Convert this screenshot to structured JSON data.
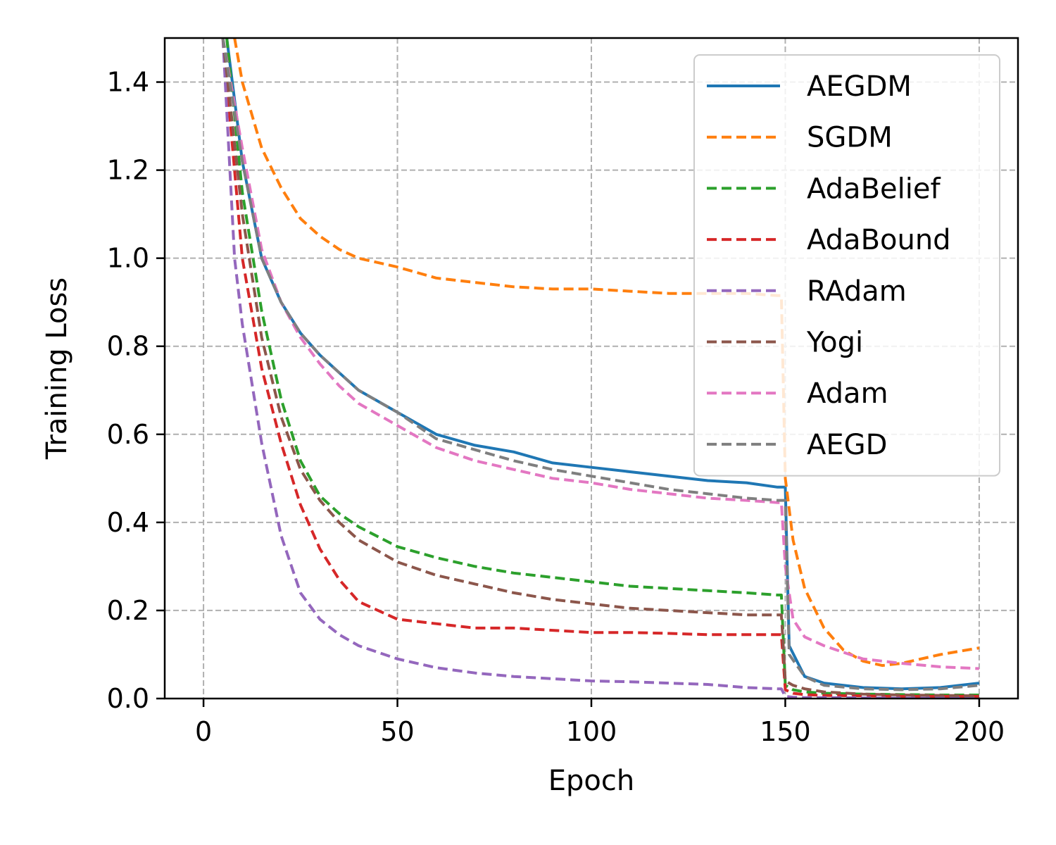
{
  "chart_data": {
    "type": "line",
    "title": "",
    "xlabel": "Epoch",
    "ylabel": "Training Loss",
    "xlim": [
      -10,
      210
    ],
    "ylim": [
      0,
      1.5
    ],
    "xticks": [
      0,
      50,
      100,
      150,
      200
    ],
    "yticks": [
      0.0,
      0.2,
      0.4,
      0.6,
      0.8,
      1.0,
      1.2,
      1.4
    ],
    "xtick_labels": [
      "0",
      "50",
      "100",
      "150",
      "200"
    ],
    "ytick_labels": [
      "0.0",
      "0.2",
      "0.4",
      "0.6",
      "0.8",
      "1.0",
      "1.2",
      "1.4"
    ],
    "grid": true,
    "legend_position": "top-right",
    "series": [
      {
        "name": "AEGDM",
        "color": "#1f77b4",
        "dash": "solid",
        "x": [
          6,
          10,
          15,
          20,
          25,
          30,
          35,
          40,
          50,
          60,
          70,
          80,
          90,
          100,
          110,
          120,
          130,
          140,
          148,
          149,
          150,
          151,
          155,
          160,
          170,
          180,
          190,
          200
        ],
        "y": [
          1.5,
          1.22,
          1.0,
          0.9,
          0.83,
          0.78,
          0.74,
          0.7,
          0.65,
          0.6,
          0.575,
          0.56,
          0.535,
          0.525,
          0.515,
          0.505,
          0.495,
          0.49,
          0.48,
          0.48,
          0.48,
          0.12,
          0.05,
          0.035,
          0.025,
          0.022,
          0.025,
          0.035
        ]
      },
      {
        "name": "SGDM",
        "color": "#ff7f0e",
        "dash": "dashed",
        "x": [
          8,
          10,
          15,
          20,
          25,
          30,
          35,
          40,
          50,
          60,
          70,
          80,
          90,
          100,
          110,
          120,
          130,
          140,
          148,
          149,
          150,
          152,
          155,
          160,
          165,
          170,
          175,
          180,
          190,
          200
        ],
        "y": [
          1.5,
          1.4,
          1.25,
          1.16,
          1.09,
          1.05,
          1.02,
          1.0,
          0.98,
          0.955,
          0.945,
          0.935,
          0.93,
          0.93,
          0.925,
          0.92,
          0.92,
          0.92,
          0.915,
          0.915,
          0.5,
          0.36,
          0.25,
          0.16,
          0.11,
          0.085,
          0.075,
          0.08,
          0.1,
          0.115
        ]
      },
      {
        "name": "AdaBelief",
        "color": "#2ca02c",
        "dash": "dashed",
        "x": [
          6,
          10,
          15,
          20,
          25,
          30,
          35,
          40,
          50,
          60,
          70,
          80,
          90,
          100,
          110,
          120,
          130,
          140,
          148,
          149,
          150,
          152,
          155,
          160,
          170,
          180,
          190,
          200
        ],
        "y": [
          1.5,
          1.15,
          0.88,
          0.68,
          0.54,
          0.46,
          0.42,
          0.39,
          0.345,
          0.32,
          0.3,
          0.285,
          0.275,
          0.265,
          0.255,
          0.25,
          0.245,
          0.24,
          0.235,
          0.235,
          0.03,
          0.02,
          0.015,
          0.012,
          0.01,
          0.009,
          0.008,
          0.008
        ]
      },
      {
        "name": "AdaBound",
        "color": "#d62728",
        "dash": "dashed",
        "x": [
          5,
          10,
          15,
          20,
          25,
          30,
          35,
          40,
          45,
          50,
          60,
          70,
          80,
          90,
          100,
          110,
          120,
          130,
          140,
          148,
          149,
          150,
          152,
          155,
          160,
          170,
          180,
          190,
          200
        ],
        "y": [
          1.5,
          1.0,
          0.75,
          0.58,
          0.44,
          0.34,
          0.27,
          0.22,
          0.2,
          0.18,
          0.17,
          0.16,
          0.16,
          0.155,
          0.15,
          0.15,
          0.148,
          0.145,
          0.145,
          0.145,
          0.145,
          0.02,
          0.012,
          0.009,
          0.007,
          0.006,
          0.005,
          0.005,
          0.005
        ]
      },
      {
        "name": "RAdam",
        "color": "#9467bd",
        "dash": "dashed",
        "x": [
          5,
          8,
          10,
          15,
          20,
          25,
          30,
          35,
          40,
          50,
          60,
          70,
          80,
          90,
          100,
          110,
          120,
          130,
          140,
          148,
          149,
          150,
          152,
          155,
          160,
          170,
          180,
          190,
          200
        ],
        "y": [
          1.5,
          1.0,
          0.85,
          0.58,
          0.37,
          0.24,
          0.18,
          0.145,
          0.12,
          0.09,
          0.07,
          0.058,
          0.05,
          0.045,
          0.04,
          0.038,
          0.035,
          0.032,
          0.025,
          0.022,
          0.022,
          0.005,
          0.003,
          0.002,
          0.002,
          0.0015,
          0.001,
          0.001,
          0.001
        ]
      },
      {
        "name": "Yogi",
        "color": "#8c564b",
        "dash": "dashed",
        "x": [
          5,
          10,
          15,
          20,
          25,
          30,
          35,
          40,
          50,
          60,
          70,
          80,
          90,
          100,
          110,
          120,
          130,
          140,
          148,
          149,
          150,
          152,
          155,
          160,
          170,
          180,
          190,
          200
        ],
        "y": [
          1.5,
          1.1,
          0.82,
          0.64,
          0.52,
          0.45,
          0.4,
          0.36,
          0.31,
          0.28,
          0.26,
          0.24,
          0.225,
          0.215,
          0.205,
          0.2,
          0.195,
          0.19,
          0.19,
          0.19,
          0.04,
          0.03,
          0.022,
          0.015,
          0.01,
          0.008,
          0.007,
          0.006
        ]
      },
      {
        "name": "Adam",
        "color": "#e377c2",
        "dash": "dashed",
        "x": [
          5,
          10,
          15,
          20,
          25,
          30,
          35,
          40,
          50,
          60,
          70,
          80,
          90,
          100,
          110,
          120,
          130,
          140,
          148,
          149,
          150,
          152,
          155,
          160,
          170,
          180,
          190,
          200
        ],
        "y": [
          1.5,
          1.25,
          1.02,
          0.9,
          0.82,
          0.76,
          0.71,
          0.67,
          0.62,
          0.57,
          0.54,
          0.52,
          0.5,
          0.49,
          0.475,
          0.465,
          0.455,
          0.45,
          0.445,
          0.445,
          0.3,
          0.18,
          0.14,
          0.12,
          0.09,
          0.08,
          0.072,
          0.068
        ]
      },
      {
        "name": "AEGD",
        "color": "#7f7f7f",
        "dash": "dashed",
        "x": [
          5,
          10,
          15,
          20,
          25,
          30,
          35,
          40,
          50,
          60,
          70,
          80,
          90,
          100,
          110,
          120,
          130,
          140,
          148,
          149,
          150,
          151,
          155,
          160,
          170,
          180,
          190,
          200
        ],
        "y": [
          1.5,
          1.22,
          1.0,
          0.9,
          0.83,
          0.78,
          0.74,
          0.7,
          0.65,
          0.59,
          0.565,
          0.54,
          0.52,
          0.505,
          0.49,
          0.475,
          0.465,
          0.455,
          0.45,
          0.45,
          0.45,
          0.1,
          0.05,
          0.03,
          0.022,
          0.02,
          0.022,
          0.03
        ]
      }
    ]
  }
}
